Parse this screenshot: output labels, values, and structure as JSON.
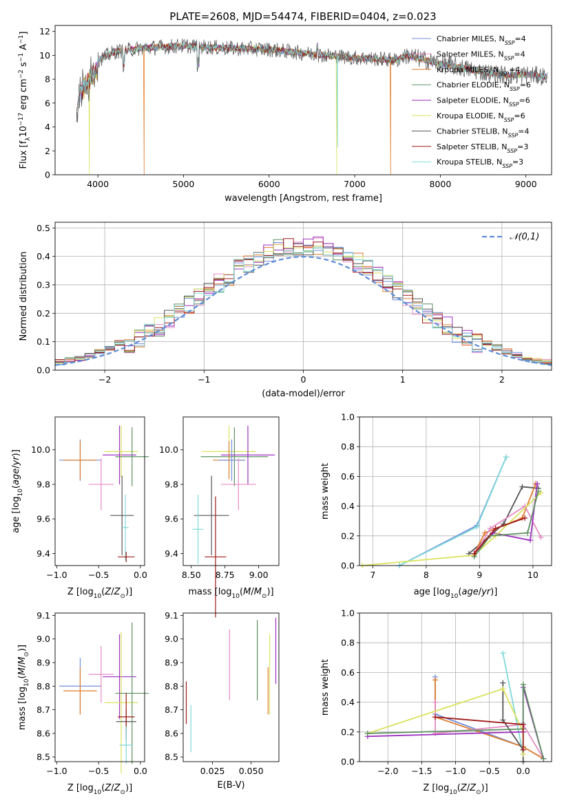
{
  "figure": {
    "title": "PLATE=2608, MJD=54474, FIBERID=0404, z=0.023"
  },
  "colors": {
    "Chabrier MILES": "#6f8fdc",
    "Salpeter MILES": "#e58ac4",
    "Kroupa MILES": "#e07b2a",
    "Chabrier ELODIE": "#5e8f60",
    "Salpeter ELODIE": "#9b2fbf",
    "Kroupa ELODIE": "#d9e25a",
    "Chabrier STELIB": "#555555",
    "Salpeter STELIB": "#a01818",
    "Kroupa STELIB": "#7fd8d8"
  },
  "chart_data": [
    {
      "id": "spectrum",
      "type": "line",
      "title": "PLATE=2608, MJD=54474, FIBERID=0404, z=0.023",
      "xlabel": "wavelength [Angstrom, rest frame]",
      "ylabel": "Flux [f_λ10^-17 erg cm^-2 s^-1 A^-1]",
      "xlim": [
        3500,
        9300
      ],
      "ylim": [
        0,
        12.5
      ],
      "xticks": [
        4000,
        5000,
        6000,
        7000,
        8000,
        9000
      ],
      "yticks": [
        0,
        2,
        4,
        6,
        8,
        10,
        12
      ],
      "grid": false,
      "legend_position": "top-right",
      "legend": [
        "Chabrier MILES, N_SSP=4",
        "Salpeter MILES, N_SSP=4",
        "Kroupa MILES, N_SSP=4",
        "Chabrier ELODIE, N_SSP=6",
        "Salpeter ELODIE, N_SSP=6",
        "Kroupa ELODIE, N_SSP=6",
        "Chabrier STELIB, N_SSP=4",
        "Salpeter STELIB, N_SSP=3",
        "Kroupa STELIB, N_SSP=3"
      ],
      "continuum": [
        [
          3750,
          5.2
        ],
        [
          3800,
          7.5
        ],
        [
          3900,
          8.8
        ],
        [
          4000,
          9.6
        ],
        [
          4200,
          10.3
        ],
        [
          4500,
          10.6
        ],
        [
          5000,
          10.8
        ],
        [
          5500,
          10.6
        ],
        [
          6000,
          10.5
        ],
        [
          6500,
          10.1
        ],
        [
          7000,
          9.8
        ],
        [
          7500,
          9.6
        ],
        [
          7600,
          10.0
        ],
        [
          8000,
          9.3
        ],
        [
          8500,
          8.6
        ],
        [
          8800,
          8.3
        ],
        [
          9000,
          8.4
        ],
        [
          9250,
          8.2
        ]
      ],
      "spectral_drops": [
        [
          3900,
          0
        ],
        [
          4540,
          0
        ],
        [
          6790,
          0
        ],
        [
          6800,
          0
        ],
        [
          7420,
          0
        ]
      ]
    },
    {
      "id": "residuals",
      "type": "histogram",
      "xlabel": "(data-model)/error",
      "ylabel": "Normed distribution",
      "xlim": [
        -2.5,
        2.5
      ],
      "ylim": [
        0,
        0.52
      ],
      "xticks": [
        -2,
        -1,
        0,
        1,
        2
      ],
      "yticks": [
        0.0,
        0.1,
        0.2,
        0.3,
        0.4,
        0.5
      ],
      "grid": true,
      "legend_position": "top-right",
      "legend": [
        "𝒩(0,1)"
      ],
      "bin_width": 0.1,
      "reference_curve": "normal(0,1)"
    },
    {
      "id": "age-vs-Z",
      "type": "errorbar",
      "xlabel": "Z [log10(Z/Z⊙)]",
      "ylabel": "age [log10(age/yr)]",
      "xlim": [
        -1.02,
        0.05
      ],
      "ylim": [
        9.33,
        10.19
      ],
      "xticks": [
        -1.0,
        -0.5,
        0.0
      ],
      "yticks": [
        9.4,
        9.6,
        9.8,
        10.0
      ],
      "grid": false,
      "points": [
        {
          "series": "Chabrier MILES",
          "x": -0.72,
          "y": 9.94,
          "xerr": 0.25,
          "yerr": 0.12
        },
        {
          "series": "Kroupa MILES",
          "x": -0.72,
          "y": 9.94,
          "xerr": 0.2,
          "yerr": 0.11
        },
        {
          "series": "Salpeter MILES",
          "x": -0.47,
          "y": 9.8,
          "xerr": 0.15,
          "yerr": 0.15
        },
        {
          "series": "Salpeter ELODIE",
          "x": -0.25,
          "y": 9.97,
          "xerr": 0.2,
          "yerr": 0.17
        },
        {
          "series": "Kroupa ELODIE",
          "x": -0.23,
          "y": 9.99,
          "xerr": 0.2,
          "yerr": 0.15
        },
        {
          "series": "Chabrier ELODIE",
          "x": -0.1,
          "y": 9.96,
          "xerr": 0.2,
          "yerr": 0.17
        },
        {
          "series": "Chabrier STELIB",
          "x": -0.22,
          "y": 9.62,
          "xerr": 0.14,
          "yerr": 0.23
        },
        {
          "series": "Kroupa STELIB",
          "x": -0.18,
          "y": 9.55,
          "xerr": 0.04,
          "yerr": 0.19
        },
        {
          "series": "Salpeter STELIB",
          "x": -0.17,
          "y": 9.38,
          "xerr": 0.1,
          "yerr": 0.03
        }
      ]
    },
    {
      "id": "age-vs-mass",
      "type": "errorbar",
      "xlabel": "mass [log10(M/M⊙)]",
      "ylabel": "",
      "xlim": [
        8.44,
        9.15
      ],
      "ylim": [
        9.33,
        10.19
      ],
      "xticks": [
        8.5,
        8.75,
        9.0
      ],
      "yticks": [
        9.4,
        9.6,
        9.8,
        10.0
      ],
      "grid": false,
      "points": [
        {
          "series": "Kroupa ELODIE",
          "x": 8.78,
          "y": 9.99,
          "xerr": 0.2,
          "yerr": 0.15
        },
        {
          "series": "Chabrier ELODIE",
          "x": 8.82,
          "y": 9.96,
          "xerr": 0.25,
          "yerr": 0.17
        },
        {
          "series": "Salpeter ELODIE",
          "x": 8.92,
          "y": 9.97,
          "xerr": 0.2,
          "yerr": 0.17
        },
        {
          "series": "Kroupa MILES",
          "x": 8.78,
          "y": 9.94,
          "xerr": 0.12,
          "yerr": 0.11
        },
        {
          "series": "Chabrier MILES",
          "x": 8.8,
          "y": 9.94,
          "xerr": 0.1,
          "yerr": 0.12
        },
        {
          "series": "Salpeter MILES",
          "x": 8.85,
          "y": 9.8,
          "xerr": 0.13,
          "yerr": 0.15
        },
        {
          "series": "Chabrier STELIB",
          "x": 8.65,
          "y": 9.62,
          "xerr": 0.13,
          "yerr": 0.23
        },
        {
          "series": "Kroupa STELIB",
          "x": 8.55,
          "y": 9.54,
          "xerr": 0.04,
          "yerr": 0.2
        },
        {
          "series": "Salpeter STELIB",
          "x": 8.68,
          "y": 9.38,
          "xerr": 0.08,
          "yerr": 0.35
        }
      ]
    },
    {
      "id": "massweight-vs-age",
      "type": "line",
      "xlabel": "age [log10(age/yr)]",
      "ylabel": "mass weight",
      "xlim": [
        6.75,
        10.35
      ],
      "ylim": [
        0,
        1.0
      ],
      "xticks": [
        7,
        8,
        9,
        10
      ],
      "yticks": [
        0.0,
        0.2,
        0.4,
        0.6,
        0.8,
        1.0
      ],
      "grid": true,
      "series": [
        {
          "name": "Chabrier MILES",
          "x": [
            7.5,
            8.95,
            9.5
          ],
          "y": [
            0.0,
            0.27,
            0.73
          ]
        },
        {
          "name": "Kroupa STELIB",
          "x": [
            7.5,
            8.95,
            9.5
          ],
          "y": [
            0.0,
            0.26,
            0.73
          ]
        },
        {
          "name": "Chabrier STELIB",
          "x": [
            8.8,
            9.45,
            9.8,
            10.1
          ],
          "y": [
            0.08,
            0.28,
            0.53,
            0.52
          ]
        },
        {
          "name": "Kroupa MILES",
          "x": [
            8.9,
            9.1,
            9.8,
            10.05
          ],
          "y": [
            0.08,
            0.22,
            0.32,
            0.55
          ]
        },
        {
          "name": "Salpeter MILES",
          "x": [
            8.95,
            9.2,
            9.85,
            10.15
          ],
          "y": [
            0.1,
            0.25,
            0.4,
            0.19
          ]
        },
        {
          "name": "Salpeter ELODIE",
          "x": [
            8.9,
            9.25,
            9.95,
            10.08
          ],
          "y": [
            0.08,
            0.22,
            0.17,
            0.55
          ]
        },
        {
          "name": "Kroupa ELODIE",
          "x": [
            6.8,
            8.9,
            9.3,
            10.15
          ],
          "y": [
            0.0,
            0.07,
            0.2,
            0.49
          ]
        },
        {
          "name": "Chabrier ELODIE",
          "x": [
            8.9,
            9.2,
            9.9,
            10.1
          ],
          "y": [
            0.06,
            0.2,
            0.22,
            0.5
          ]
        },
        {
          "name": "Salpeter STELIB",
          "x": [
            8.9,
            9.3,
            9.85
          ],
          "y": [
            0.08,
            0.25,
            0.32
          ]
        }
      ]
    },
    {
      "id": "mass-vs-Z",
      "type": "errorbar",
      "xlabel": "Z [log10(Z/Z⊙)]",
      "ylabel": "mass [log10(M/M⊙)]",
      "xlim": [
        -1.02,
        0.05
      ],
      "ylim": [
        8.48,
        9.11
      ],
      "xticks": [
        -1.0,
        -0.5,
        0.0
      ],
      "yticks": [
        8.5,
        8.6,
        8.7,
        8.8,
        8.9,
        9.0,
        9.1
      ],
      "grid": false,
      "points": [
        {
          "series": "Chabrier MILES",
          "x": -0.72,
          "y": 8.8,
          "xerr": 0.25,
          "yerr": 0.12
        },
        {
          "series": "Kroupa MILES",
          "x": -0.72,
          "y": 8.78,
          "xerr": 0.2,
          "yerr": 0.1
        },
        {
          "series": "Salpeter MILES",
          "x": -0.47,
          "y": 8.85,
          "xerr": 0.15,
          "yerr": 0.12
        },
        {
          "series": "Salpeter ELODIE",
          "x": -0.25,
          "y": 8.84,
          "xerr": 0.2,
          "yerr": 0.18
        },
        {
          "series": "Kroupa ELODIE",
          "x": -0.23,
          "y": 8.73,
          "xerr": 0.2,
          "yerr": 0.3
        },
        {
          "series": "Chabrier ELODIE",
          "x": -0.1,
          "y": 8.77,
          "xerr": 0.2,
          "yerr": 0.3
        },
        {
          "series": "Chabrier STELIB",
          "x": -0.17,
          "y": 8.65,
          "xerr": 0.12,
          "yerr": 0.05
        },
        {
          "series": "Salpeter STELIB",
          "x": -0.17,
          "y": 8.67,
          "xerr": 0.1,
          "yerr": 0.1
        },
        {
          "series": "Kroupa STELIB",
          "x": -0.17,
          "y": 8.55,
          "xerr": 0.08,
          "yerr": 0.08
        }
      ]
    },
    {
      "id": "mass-vs-EBV",
      "type": "errorbar",
      "xlabel": "E(B-V)",
      "ylabel": "",
      "xlim": [
        0.006,
        0.068
      ],
      "ylim": [
        8.48,
        9.11
      ],
      "xticks": [
        0.025,
        0.05
      ],
      "yticks": [
        8.5,
        8.6,
        8.7,
        8.8,
        8.9,
        9.0,
        9.1
      ],
      "grid": false,
      "points": [
        {
          "series": "Salpeter STELIB",
          "x": 0.008,
          "y": 8.73,
          "xerr": 0,
          "yerr": 0.09
        },
        {
          "series": "Kroupa STELIB",
          "x": 0.011,
          "y": 8.62,
          "xerr": 0,
          "yerr": 0.1
        },
        {
          "series": "Salpeter MILES",
          "x": 0.036,
          "y": 8.89,
          "xerr": 0,
          "yerr": 0.15
        },
        {
          "series": "Chabrier ELODIE",
          "x": 0.054,
          "y": 8.91,
          "xerr": 0,
          "yerr": 0.17
        },
        {
          "series": "Kroupa ELODIE",
          "x": 0.062,
          "y": 8.85,
          "xerr": 0,
          "yerr": 0.17
        },
        {
          "series": "Kroupa MILES",
          "x": 0.061,
          "y": 8.78,
          "xerr": 0,
          "yerr": 0.1
        },
        {
          "series": "Salpeter ELODIE",
          "x": 0.066,
          "y": 8.95,
          "xerr": 0,
          "yerr": 0.14
        }
      ]
    },
    {
      "id": "massweight-vs-Z",
      "type": "line",
      "xlabel": "Z [log10(Z/Z⊙)]",
      "ylabel": "mass weight",
      "xlim": [
        -2.42,
        0.42
      ],
      "ylim": [
        0,
        1.0
      ],
      "xticks": [
        -2.0,
        -1.5,
        -1.0,
        -0.5,
        0.0
      ],
      "yticks": [
        0.0,
        0.2,
        0.4,
        0.6,
        0.8,
        1.0
      ],
      "grid": true,
      "series": [
        {
          "name": "Chabrier MILES",
          "x": [
            -1.3,
            -1.3,
            0.0,
            0.3
          ],
          "y": [
            0.57,
            0.32,
            0.1,
            0.02
          ]
        },
        {
          "name": "Kroupa MILES",
          "x": [
            -1.3,
            -1.3,
            0.0,
            0.3
          ],
          "y": [
            0.55,
            0.3,
            0.1,
            0.02
          ]
        },
        {
          "name": "Salpeter MILES",
          "x": [
            -1.3,
            -1.3,
            0.0,
            0.3
          ],
          "y": [
            0.4,
            0.19,
            0.25,
            0.02
          ]
        },
        {
          "name": "Kroupa STELIB",
          "x": [
            -0.3,
            0.0,
            0.0
          ],
          "y": [
            0.73,
            0.05,
            0.26
          ]
        },
        {
          "name": "Chabrier STELIB",
          "x": [
            -0.3,
            -0.3,
            0.0,
            0.0
          ],
          "y": [
            0.53,
            0.28,
            0.08,
            0.0
          ]
        },
        {
          "name": "Kroupa ELODIE",
          "x": [
            -2.3,
            -0.3,
            0.0,
            0.0
          ],
          "y": [
            0.19,
            0.49,
            0.2,
            0.05
          ]
        },
        {
          "name": "Salpeter ELODIE",
          "x": [
            -2.3,
            0.0,
            0.0,
            0.3
          ],
          "y": [
            0.17,
            0.2,
            0.5,
            0.02
          ]
        },
        {
          "name": "Chabrier ELODIE",
          "x": [
            -2.3,
            0.0,
            0.0,
            0.3
          ],
          "y": [
            0.19,
            0.22,
            0.52,
            0.02
          ]
        },
        {
          "name": "Salpeter STELIB",
          "x": [
            -1.3,
            0.0,
            0.0
          ],
          "y": [
            0.3,
            0.25,
            0.08
          ]
        }
      ]
    }
  ]
}
